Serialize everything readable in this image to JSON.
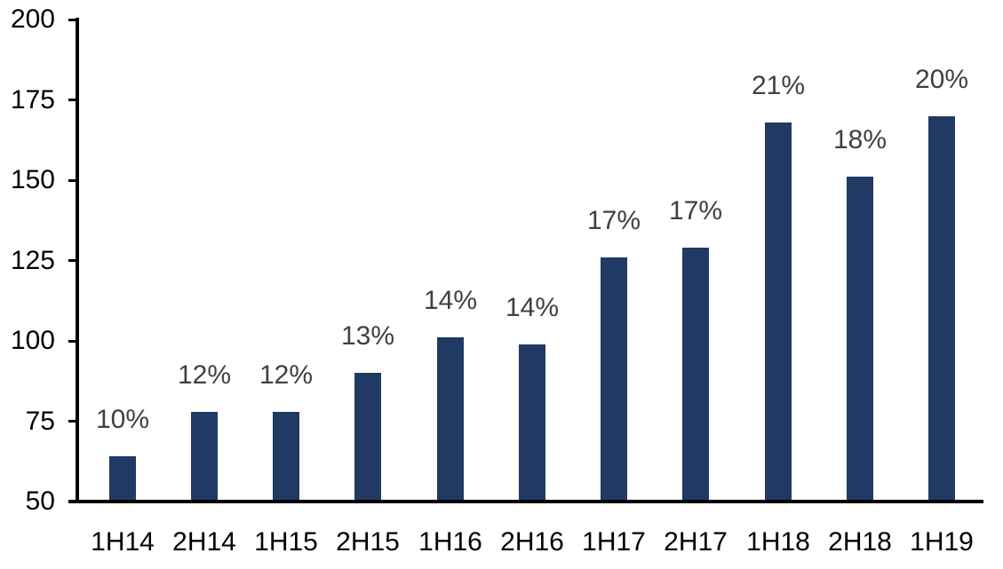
{
  "chart_data": {
    "type": "bar",
    "title": "",
    "xlabel": "",
    "ylabel": "",
    "categories": [
      "1H14",
      "2H14",
      "1H15",
      "2H15",
      "1H16",
      "2H16",
      "1H17",
      "2H17",
      "1H18",
      "2H18",
      "1H19"
    ],
    "values": [
      64,
      78,
      78,
      90,
      101,
      99,
      126,
      129,
      168,
      151,
      170
    ],
    "data_labels": [
      "10%",
      "12%",
      "12%",
      "13%",
      "14%",
      "14%",
      "17%",
      "17%",
      "21%",
      "18%",
      "20%"
    ],
    "ylim": [
      50,
      200
    ],
    "yticks": [
      50,
      75,
      100,
      125,
      150,
      175,
      200
    ],
    "grid": false,
    "legend": "none",
    "colors": {
      "bar_fill": "#203a63",
      "data_label_text": "#404040",
      "axis_text": "#000000",
      "axis_line": "#000000",
      "background": "#ffffff"
    }
  }
}
